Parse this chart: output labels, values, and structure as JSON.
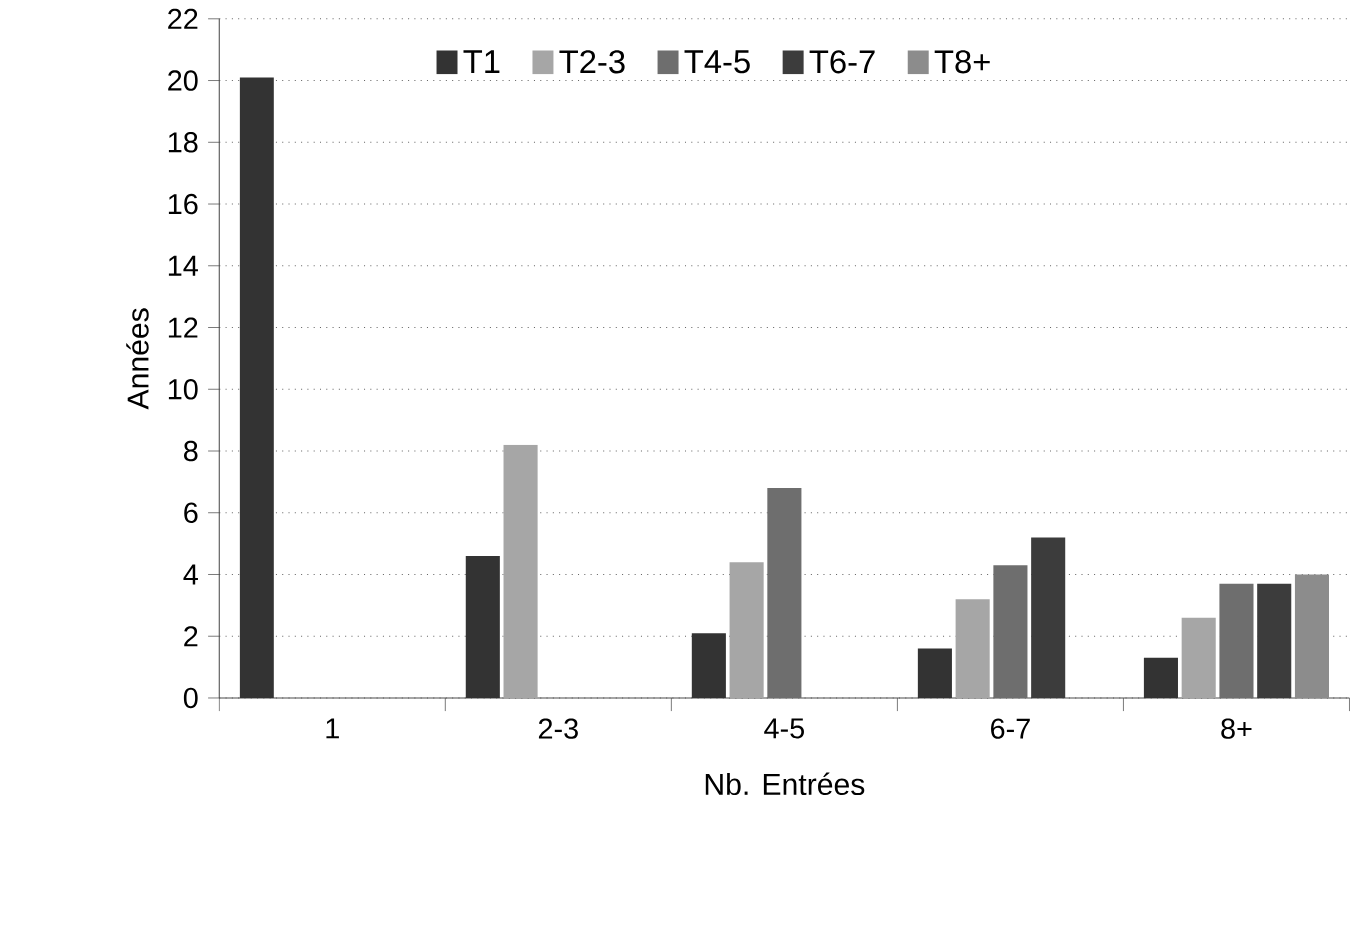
{
  "chart_data": {
    "type": "bar",
    "xlabel": "Nb. Entrées",
    "ylabel": "Années",
    "categories": [
      "1",
      "2-3",
      "4-5",
      "6-7",
      "8+"
    ],
    "series": [
      {
        "name": "T1",
        "color": "#333333",
        "values": [
          20.1,
          4.6,
          2.1,
          1.6,
          1.3
        ]
      },
      {
        "name": "T2-3",
        "color": "#a6a6a6",
        "values": [
          null,
          8.2,
          4.4,
          3.2,
          2.6
        ]
      },
      {
        "name": "T4-5",
        "color": "#6e6e6e",
        "values": [
          null,
          null,
          6.8,
          4.3,
          3.7
        ]
      },
      {
        "name": "T6-7",
        "color": "#3c3c3c",
        "values": [
          null,
          null,
          null,
          5.2,
          3.7
        ]
      },
      {
        "name": "T8+",
        "color": "#8c8c8c",
        "values": [
          null,
          null,
          null,
          null,
          4.0
        ]
      }
    ],
    "ylim": [
      0,
      22
    ],
    "yticks": [
      0,
      2,
      4,
      6,
      8,
      10,
      12,
      14,
      16,
      18,
      20,
      22
    ],
    "grid": "y",
    "legend": "top"
  }
}
